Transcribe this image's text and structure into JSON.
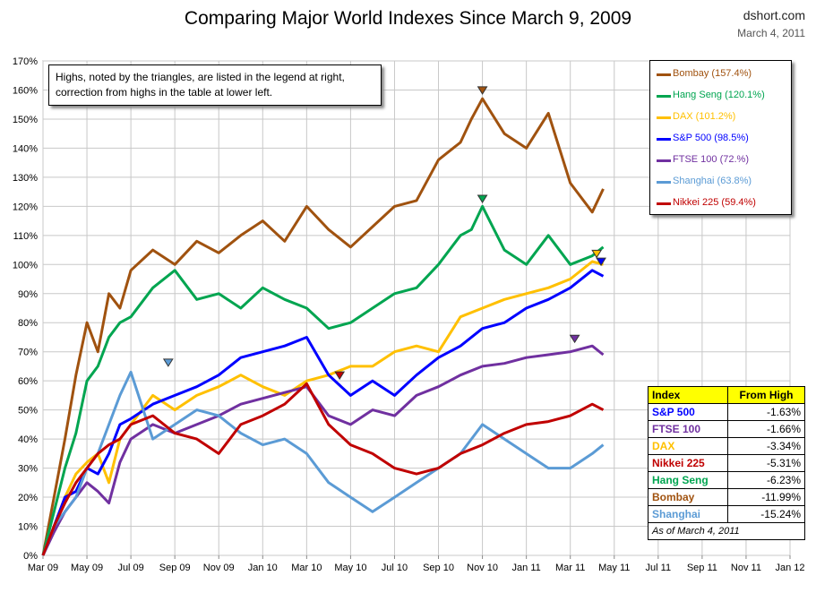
{
  "header": {
    "title": "Comparing Major World Indexes Since March 9, 2009",
    "site": "dshort.com",
    "date": "March 4, 2011"
  },
  "note": "Highs, noted by the triangles, are listed in the legend at right, correction from highs in the table at lower left.",
  "chart_data": {
    "type": "line",
    "x_labels": [
      "Mar 09",
      "May 09",
      "Jul 09",
      "Sep 09",
      "Nov 09",
      "Jan 10",
      "Mar 10",
      "May 10",
      "Jul 10",
      "Sep 10",
      "Nov 10",
      "Jan 11",
      "Mar 11",
      "May 11",
      "Jul 11",
      "Sep 11",
      "Nov 11",
      "Jan 12"
    ],
    "y_ticks": [
      "0%",
      "10%",
      "20%",
      "30%",
      "40%",
      "50%",
      "60%",
      "70%",
      "80%",
      "90%",
      "100%",
      "110%",
      "120%",
      "130%",
      "140%",
      "150%",
      "160%",
      "170%"
    ],
    "ylim": [
      0,
      170
    ],
    "grid": true,
    "legend_position": "top-right",
    "series": [
      {
        "name": "Bombay (157.4%)",
        "color": "#a0520f",
        "values": [
          [
            0,
            0
          ],
          [
            0.5,
            20
          ],
          [
            1,
            40
          ],
          [
            1.5,
            62
          ],
          [
            2,
            80
          ],
          [
            2.5,
            70
          ],
          [
            3,
            90
          ],
          [
            3.5,
            85
          ],
          [
            4,
            98
          ],
          [
            5,
            105
          ],
          [
            6,
            100
          ],
          [
            7,
            108
          ],
          [
            8,
            104
          ],
          [
            9,
            110
          ],
          [
            10,
            115
          ],
          [
            11,
            108
          ],
          [
            12,
            120
          ],
          [
            13,
            112
          ],
          [
            14,
            106
          ],
          [
            15,
            113
          ],
          [
            16,
            120
          ],
          [
            17,
            122
          ],
          [
            18,
            136
          ],
          [
            19,
            142
          ],
          [
            19.5,
            150
          ],
          [
            20,
            157
          ],
          [
            21,
            145
          ],
          [
            22,
            140
          ],
          [
            23,
            152
          ],
          [
            24,
            128
          ],
          [
            25,
            118
          ],
          [
            25.5,
            126
          ]
        ]
      },
      {
        "name": "Hang Seng (120.1%)",
        "color": "#00a550",
        "values": [
          [
            0,
            0
          ],
          [
            0.5,
            15
          ],
          [
            1,
            30
          ],
          [
            1.5,
            42
          ],
          [
            2,
            60
          ],
          [
            2.5,
            65
          ],
          [
            3,
            75
          ],
          [
            3.5,
            80
          ],
          [
            4,
            82
          ],
          [
            5,
            92
          ],
          [
            6,
            98
          ],
          [
            7,
            88
          ],
          [
            8,
            90
          ],
          [
            9,
            85
          ],
          [
            10,
            92
          ],
          [
            11,
            88
          ],
          [
            12,
            85
          ],
          [
            13,
            78
          ],
          [
            14,
            80
          ],
          [
            15,
            85
          ],
          [
            16,
            90
          ],
          [
            17,
            92
          ],
          [
            18,
            100
          ],
          [
            19,
            110
          ],
          [
            19.5,
            112
          ],
          [
            20,
            120
          ],
          [
            21,
            105
          ],
          [
            22,
            100
          ],
          [
            23,
            110
          ],
          [
            24,
            100
          ],
          [
            25,
            103
          ],
          [
            25.5,
            106
          ]
        ]
      },
      {
        "name": "DAX (101.2%)",
        "color": "#ffc000",
        "values": [
          [
            0,
            0
          ],
          [
            0.5,
            10
          ],
          [
            1,
            20
          ],
          [
            1.5,
            28
          ],
          [
            2,
            32
          ],
          [
            2.5,
            35
          ],
          [
            3,
            25
          ],
          [
            3.5,
            40
          ],
          [
            4,
            45
          ],
          [
            5,
            55
          ],
          [
            6,
            50
          ],
          [
            7,
            55
          ],
          [
            8,
            58
          ],
          [
            9,
            62
          ],
          [
            10,
            58
          ],
          [
            11,
            55
          ],
          [
            12,
            60
          ],
          [
            13,
            62
          ],
          [
            14,
            65
          ],
          [
            15,
            65
          ],
          [
            16,
            70
          ],
          [
            17,
            72
          ],
          [
            18,
            70
          ],
          [
            19,
            82
          ],
          [
            20,
            85
          ],
          [
            21,
            88
          ],
          [
            22,
            90
          ],
          [
            23,
            92
          ],
          [
            24,
            95
          ],
          [
            25,
            101
          ],
          [
            25.5,
            100
          ]
        ]
      },
      {
        "name": "S&P 500 (98.5%)",
        "color": "#0000ff",
        "values": [
          [
            0,
            0
          ],
          [
            0.5,
            10
          ],
          [
            1,
            20
          ],
          [
            1.5,
            22
          ],
          [
            2,
            30
          ],
          [
            2.5,
            28
          ],
          [
            3,
            35
          ],
          [
            3.5,
            45
          ],
          [
            4,
            47
          ],
          [
            5,
            52
          ],
          [
            6,
            55
          ],
          [
            7,
            58
          ],
          [
            8,
            62
          ],
          [
            9,
            68
          ],
          [
            10,
            70
          ],
          [
            11,
            72
          ],
          [
            12,
            75
          ],
          [
            13,
            62
          ],
          [
            14,
            55
          ],
          [
            15,
            60
          ],
          [
            16,
            55
          ],
          [
            17,
            62
          ],
          [
            18,
            68
          ],
          [
            19,
            72
          ],
          [
            20,
            78
          ],
          [
            21,
            80
          ],
          [
            22,
            85
          ],
          [
            23,
            88
          ],
          [
            24,
            92
          ],
          [
            25,
            98
          ],
          [
            25.5,
            96
          ]
        ]
      },
      {
        "name": "FTSE 100 (72.%)",
        "color": "#7030a0",
        "values": [
          [
            0,
            0
          ],
          [
            0.5,
            8
          ],
          [
            1,
            15
          ],
          [
            1.5,
            20
          ],
          [
            2,
            25
          ],
          [
            2.5,
            22
          ],
          [
            3,
            18
          ],
          [
            3.5,
            32
          ],
          [
            4,
            40
          ],
          [
            5,
            45
          ],
          [
            6,
            42
          ],
          [
            7,
            45
          ],
          [
            8,
            48
          ],
          [
            9,
            52
          ],
          [
            10,
            54
          ],
          [
            11,
            56
          ],
          [
            12,
            58
          ],
          [
            13,
            48
          ],
          [
            14,
            45
          ],
          [
            15,
            50
          ],
          [
            16,
            48
          ],
          [
            17,
            55
          ],
          [
            18,
            58
          ],
          [
            19,
            62
          ],
          [
            20,
            65
          ],
          [
            21,
            66
          ],
          [
            22,
            68
          ],
          [
            23,
            69
          ],
          [
            24,
            70
          ],
          [
            25,
            72
          ],
          [
            25.5,
            69
          ]
        ]
      },
      {
        "name": "Shanghai (63.8%)",
        "color": "#5b9bd5",
        "values": [
          [
            0,
            0
          ],
          [
            0.5,
            10
          ],
          [
            1,
            15
          ],
          [
            1.5,
            20
          ],
          [
            2,
            30
          ],
          [
            2.5,
            35
          ],
          [
            3,
            45
          ],
          [
            3.5,
            55
          ],
          [
            4,
            63
          ],
          [
            5,
            40
          ],
          [
            6,
            45
          ],
          [
            7,
            50
          ],
          [
            8,
            48
          ],
          [
            9,
            42
          ],
          [
            10,
            38
          ],
          [
            11,
            40
          ],
          [
            12,
            35
          ],
          [
            13,
            25
          ],
          [
            14,
            20
          ],
          [
            15,
            15
          ],
          [
            16,
            20
          ],
          [
            17,
            25
          ],
          [
            18,
            30
          ],
          [
            19,
            35
          ],
          [
            20,
            45
          ],
          [
            21,
            40
          ],
          [
            22,
            35
          ],
          [
            23,
            30
          ],
          [
            24,
            30
          ],
          [
            25,
            35
          ],
          [
            25.5,
            38
          ]
        ]
      },
      {
        "name": "Nikkei 225 (59.4%)",
        "color": "#c00000",
        "values": [
          [
            0,
            0
          ],
          [
            0.5,
            10
          ],
          [
            1,
            18
          ],
          [
            1.5,
            25
          ],
          [
            2,
            30
          ],
          [
            2.5,
            35
          ],
          [
            3,
            38
          ],
          [
            3.5,
            40
          ],
          [
            4,
            45
          ],
          [
            5,
            48
          ],
          [
            6,
            42
          ],
          [
            7,
            40
          ],
          [
            8,
            35
          ],
          [
            9,
            45
          ],
          [
            10,
            48
          ],
          [
            11,
            52
          ],
          [
            12,
            59
          ],
          [
            13,
            45
          ],
          [
            14,
            38
          ],
          [
            15,
            35
          ],
          [
            16,
            30
          ],
          [
            17,
            28
          ],
          [
            18,
            30
          ],
          [
            19,
            35
          ],
          [
            20,
            38
          ],
          [
            21,
            42
          ],
          [
            22,
            45
          ],
          [
            23,
            46
          ],
          [
            24,
            48
          ],
          [
            25,
            52
          ],
          [
            25.5,
            50
          ]
        ]
      }
    ],
    "highs": [
      {
        "x": 20,
        "y": 157.4,
        "color": "#a0520f"
      },
      {
        "x": 20,
        "y": 120.1,
        "color": "#00a550"
      },
      {
        "x": 25.2,
        "y": 101.2,
        "color": "#ffc000"
      },
      {
        "x": 25.4,
        "y": 98.5,
        "color": "#0000ff"
      },
      {
        "x": 24.2,
        "y": 72,
        "color": "#7030a0"
      },
      {
        "x": 5.7,
        "y": 63.8,
        "color": "#5b9bd5"
      },
      {
        "x": 13.5,
        "y": 59.4,
        "color": "#c00000"
      }
    ]
  },
  "table": {
    "headers": [
      "Index",
      "From High"
    ],
    "rows": [
      {
        "name": "S&P 500",
        "value": "-1.63%",
        "color": "#0000ff"
      },
      {
        "name": "FTSE 100",
        "value": "-1.66%",
        "color": "#7030a0"
      },
      {
        "name": "DAX",
        "value": "-3.34%",
        "color": "#ffc000"
      },
      {
        "name": "Nikkei 225",
        "value": "-5.31%",
        "color": "#c00000"
      },
      {
        "name": "Hang Seng",
        "value": "-6.23%",
        "color": "#00a550"
      },
      {
        "name": "Bombay",
        "value": "-11.99%",
        "color": "#a0520f"
      },
      {
        "name": "Shanghai",
        "value": "-15.24%",
        "color": "#5b9bd5"
      }
    ],
    "as_of": "As of March  4, 2011"
  }
}
